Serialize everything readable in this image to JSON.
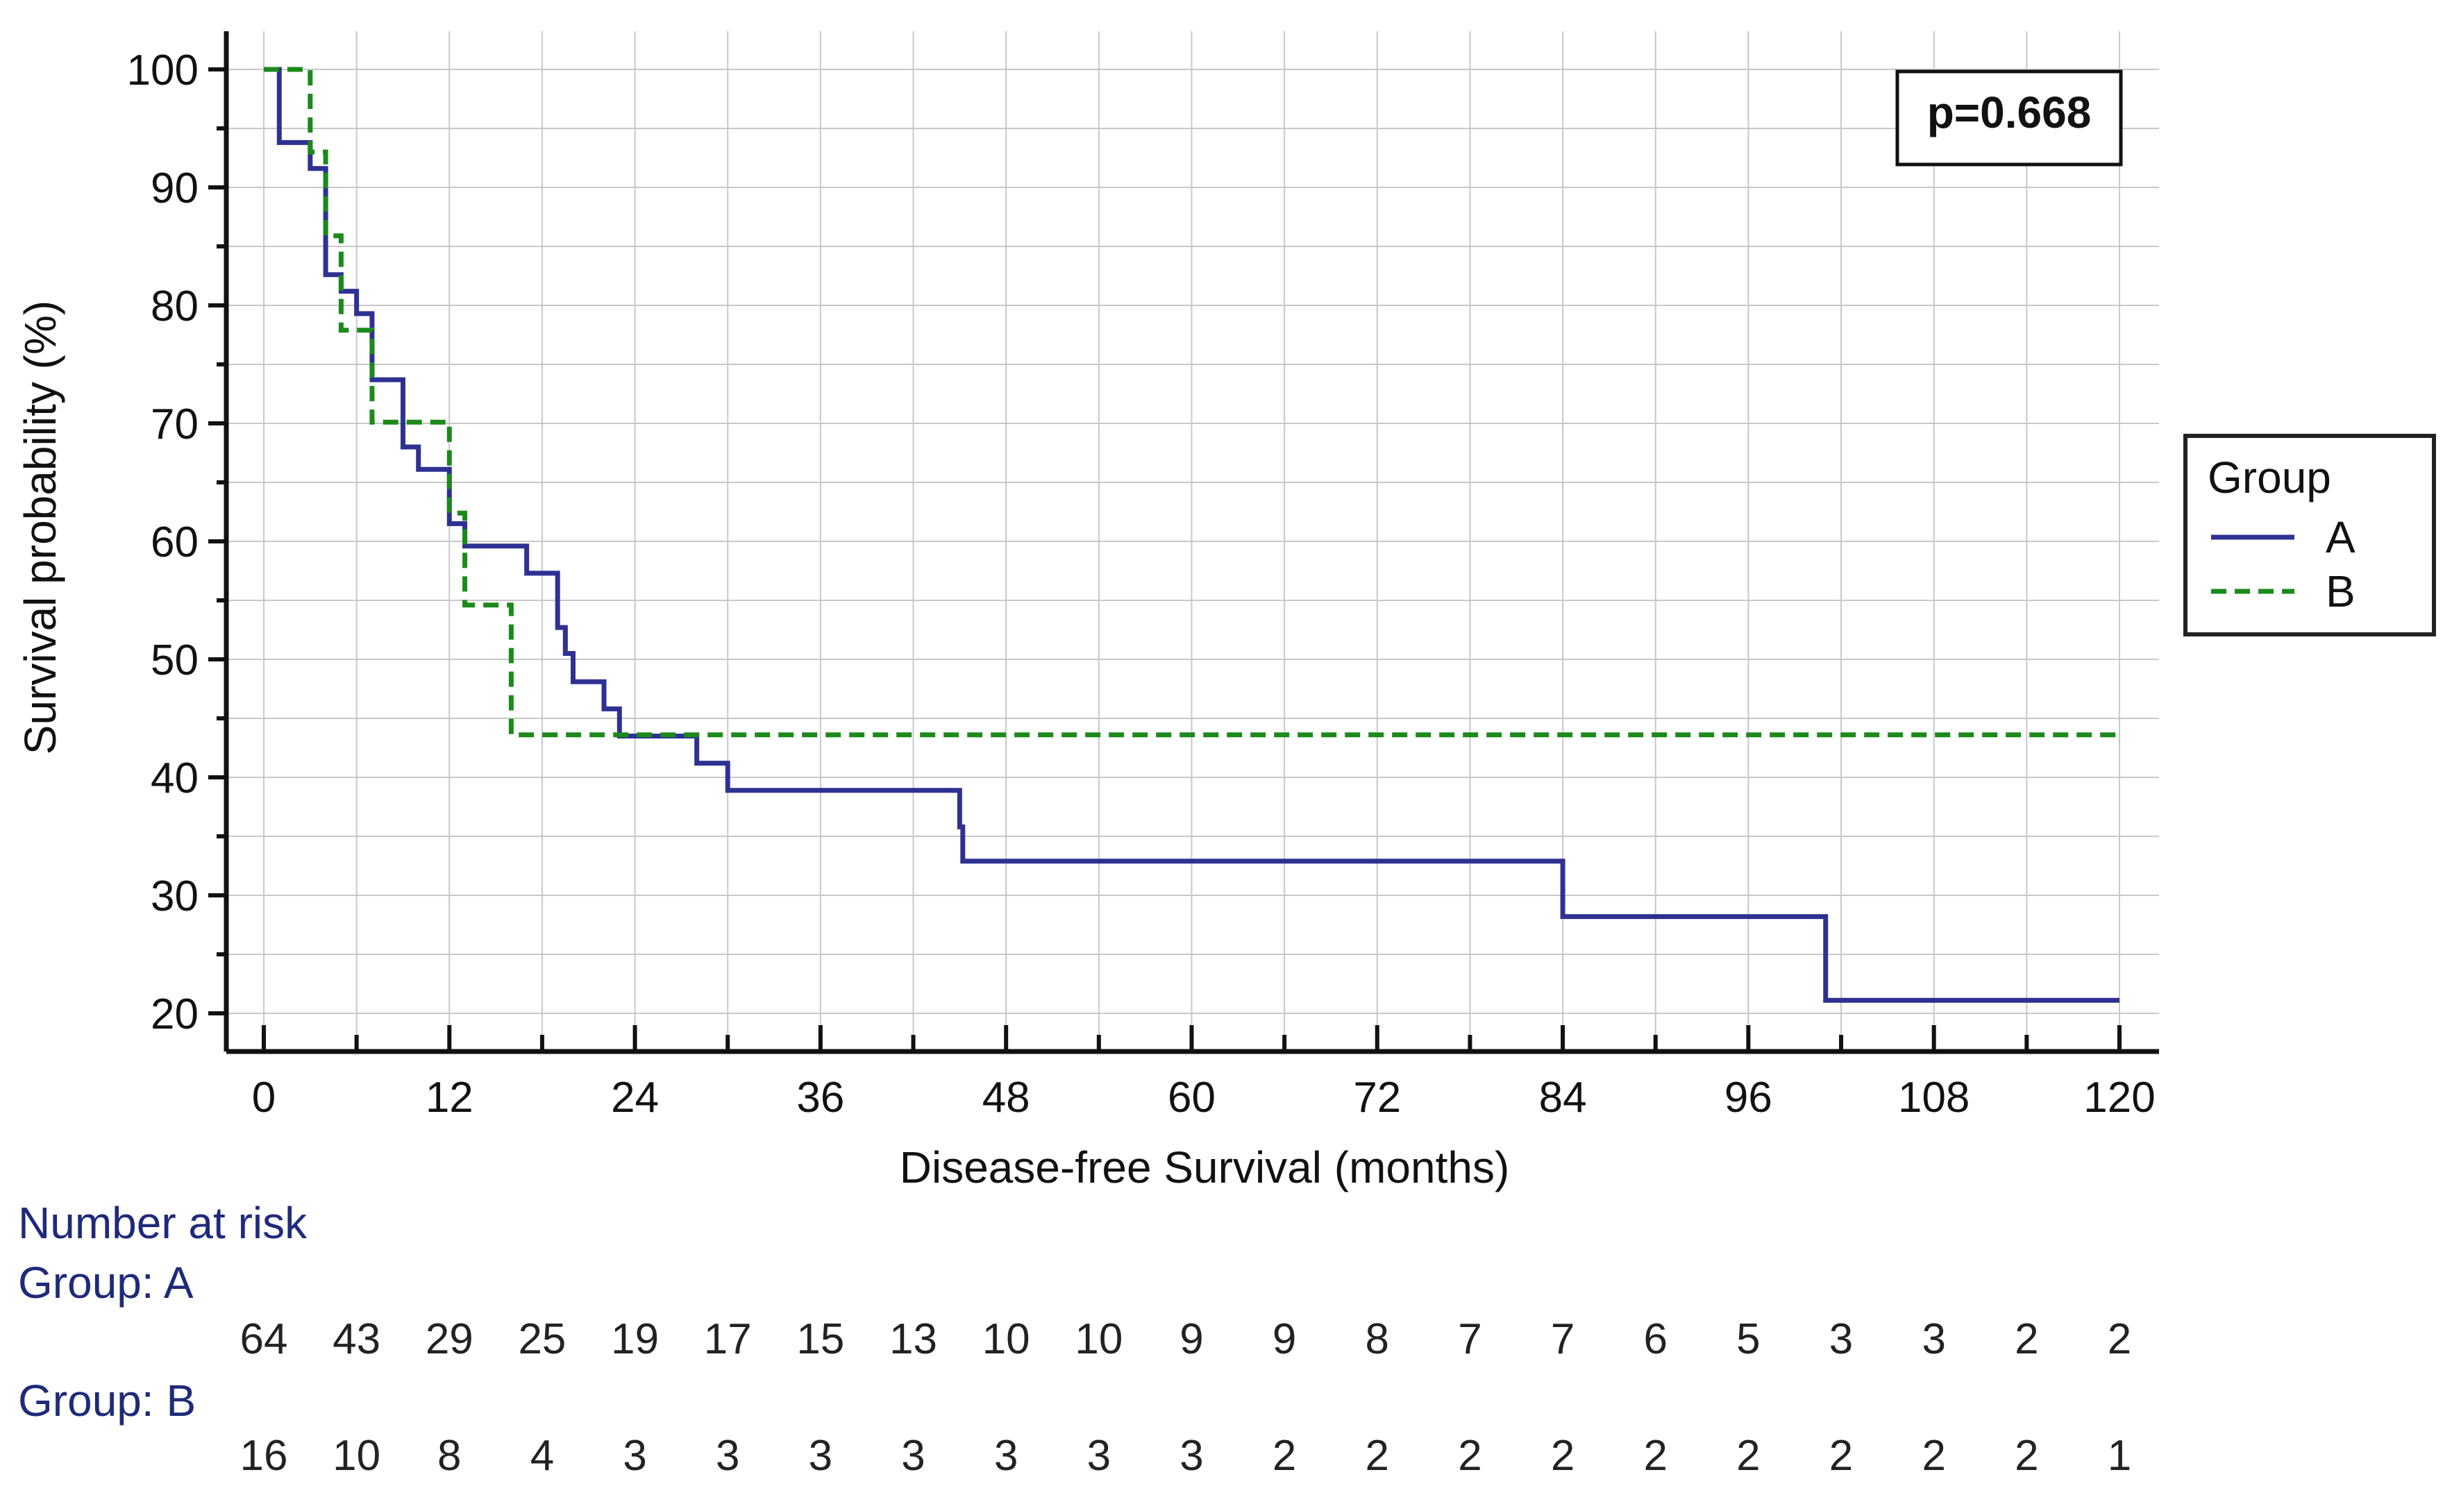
{
  "chart_data": {
    "type": "line",
    "subtype": "kaplan-meier",
    "xlabel": "Disease-free Survival (months)",
    "ylabel": "Survival probability (%)",
    "xlim": [
      0,
      120
    ],
    "ylim": [
      20,
      100
    ],
    "x_ticks": [
      0,
      12,
      24,
      36,
      48,
      60,
      72,
      84,
      96,
      108,
      120
    ],
    "x_tick_labels": [
      "0",
      "12",
      "24",
      "36",
      "48",
      "60",
      "72",
      "84",
      "96",
      "108",
      "120"
    ],
    "y_ticks": [
      20,
      30,
      40,
      50,
      60,
      70,
      80,
      90,
      100
    ],
    "y_tick_labels": [
      "20",
      "30",
      "40",
      "50",
      "60",
      "70",
      "80",
      "90",
      "100"
    ],
    "grid": true,
    "annotation": "p=0.668",
    "legend": {
      "title": "Group",
      "placement": "right",
      "entries": [
        "A",
        "B"
      ]
    },
    "series": [
      {
        "name": "A",
        "color": "#2e3192",
        "style": "solid",
        "steps": [
          [
            0,
            100
          ],
          [
            1,
            93.8
          ],
          [
            3,
            91.6
          ],
          [
            4,
            82.6
          ],
          [
            5,
            81.2
          ],
          [
            6,
            79.3
          ],
          [
            7,
            73.7
          ],
          [
            9,
            68.0
          ],
          [
            10,
            66.1
          ],
          [
            12,
            61.5
          ],
          [
            13,
            59.6
          ],
          [
            17,
            57.3
          ],
          [
            19,
            52.7
          ],
          [
            19.5,
            50.5
          ],
          [
            20,
            48.1
          ],
          [
            22,
            45.8
          ],
          [
            23,
            43.5
          ],
          [
            28,
            41.2
          ],
          [
            30,
            38.9
          ],
          [
            45,
            35.8
          ],
          [
            45.2,
            32.9
          ],
          [
            84,
            28.2
          ],
          [
            101,
            21.1
          ],
          [
            120,
            21.1
          ]
        ]
      },
      {
        "name": "B",
        "color": "#1b8a1b",
        "style": "dashed",
        "steps": [
          [
            0,
            100
          ],
          [
            3,
            93.0
          ],
          [
            4,
            85.9
          ],
          [
            5,
            77.9
          ],
          [
            7,
            70.1
          ],
          [
            12,
            62.4
          ],
          [
            13,
            54.6
          ],
          [
            16,
            43.6
          ],
          [
            120,
            43.6
          ]
        ]
      }
    ],
    "risk_table": {
      "title": "Number at risk",
      "times": [
        0,
        6,
        12,
        18,
        24,
        30,
        36,
        42,
        48,
        54,
        60,
        66,
        72,
        78,
        84,
        90,
        96,
        102,
        108,
        114,
        120
      ],
      "groups": [
        {
          "label": "Group: A",
          "counts": [
            "64",
            "43",
            "29",
            "25",
            "19",
            "17",
            "15",
            "13",
            "10",
            "10",
            "9",
            "9",
            "8",
            "7",
            "7",
            "6",
            "5",
            "3",
            "3",
            "2",
            "2"
          ]
        },
        {
          "label": "Group: B",
          "counts": [
            "16",
            "10",
            "8",
            "4",
            "3",
            "3",
            "3",
            "3",
            "3",
            "3",
            "3",
            "2",
            "2",
            "2",
            "2",
            "2",
            "2",
            "2",
            "2",
            "2",
            "1"
          ]
        }
      ]
    }
  },
  "colors": {
    "risk_text": "#1f2a7a",
    "axis": "#111111",
    "grid": "#c8c8c8"
  }
}
